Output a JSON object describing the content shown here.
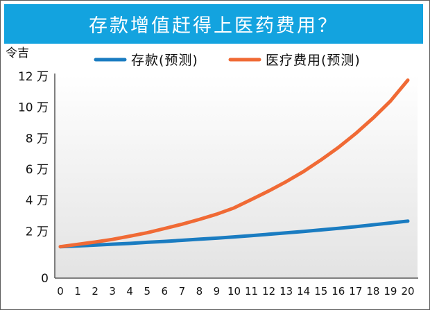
{
  "chart_data": {
    "type": "line",
    "title": "存款增值赶得上医药费用？",
    "ylabel": "令吉",
    "y_ticks": [
      "0",
      "2 万",
      "4 万",
      "6 万",
      "8 万",
      "10 万",
      "12 万"
    ],
    "ylim": [
      0,
      120000
    ],
    "x": [
      0,
      1,
      2,
      3,
      4,
      5,
      6,
      7,
      8,
      9,
      10,
      11,
      12,
      13,
      14,
      15,
      16,
      17,
      18,
      19,
      20
    ],
    "xlim": [
      0,
      20
    ],
    "grid": false,
    "legend_position": "top",
    "series": [
      {
        "name": "存款(预测)",
        "color": "#1a7cc1",
        "values": [
          10000,
          10500,
          11000,
          11600,
          12100,
          12800,
          13400,
          14100,
          14800,
          15500,
          16300,
          17100,
          18000,
          18900,
          19800,
          20800,
          21800,
          22900,
          24100,
          25300,
          26500
        ]
      },
      {
        "name": "医疗费用(预测)",
        "color": "#f06a35",
        "values": [
          10000,
          11500,
          13000,
          14700,
          16800,
          19000,
          21700,
          24500,
          27600,
          31000,
          35000,
          40500,
          46000,
          52000,
          58500,
          66000,
          74000,
          83000,
          93000,
          104000,
          117500
        ]
      }
    ]
  }
}
